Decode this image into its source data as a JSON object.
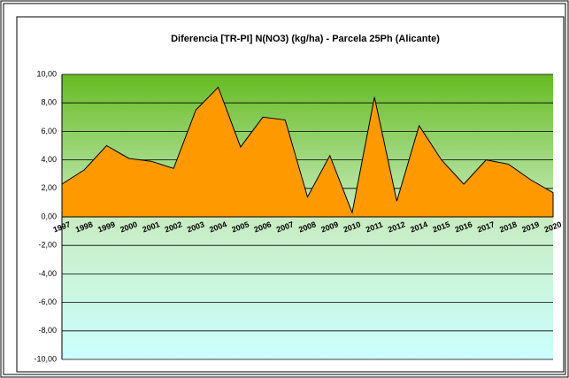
{
  "chart_data": {
    "type": "area",
    "title": "Diferencia [TR-PI] N(NO3) (kg/ha) - Parcela 25Ph (Alicante)",
    "categories": [
      "1997",
      "1998",
      "1999",
      "2000",
      "2001",
      "2002",
      "2003",
      "2004",
      "2005",
      "2006",
      "2007",
      "2008",
      "2009",
      "2010",
      "2011",
      "2012",
      "2014",
      "2015",
      "2016",
      "2017",
      "2018",
      "2019",
      "2020"
    ],
    "values": [
      2.3,
      3.3,
      5.0,
      4.1,
      3.9,
      3.4,
      7.5,
      9.1,
      4.9,
      7.0,
      6.8,
      1.4,
      4.3,
      0.3,
      8.4,
      1.1,
      6.4,
      4.0,
      2.3,
      4.0,
      3.7,
      2.6,
      1.7
    ],
    "color": "#ff9900",
    "ylim": [
      -10,
      10
    ],
    "yticks": [
      {
        "value": 10,
        "label": "10,00"
      },
      {
        "value": 8,
        "label": "8,00"
      },
      {
        "value": 6,
        "label": "6,00"
      },
      {
        "value": 4,
        "label": "4,00"
      },
      {
        "value": 2,
        "label": "2,00"
      },
      {
        "value": 0,
        "label": "0,00"
      },
      {
        "value": -2,
        "label": "-2,00"
      },
      {
        "value": -4,
        "label": "-4,00"
      },
      {
        "value": -6,
        "label": "-6,00"
      },
      {
        "value": -8,
        "label": "-8,00"
      },
      {
        "value": -10,
        "label": "-10,00"
      }
    ],
    "grid": true
  }
}
